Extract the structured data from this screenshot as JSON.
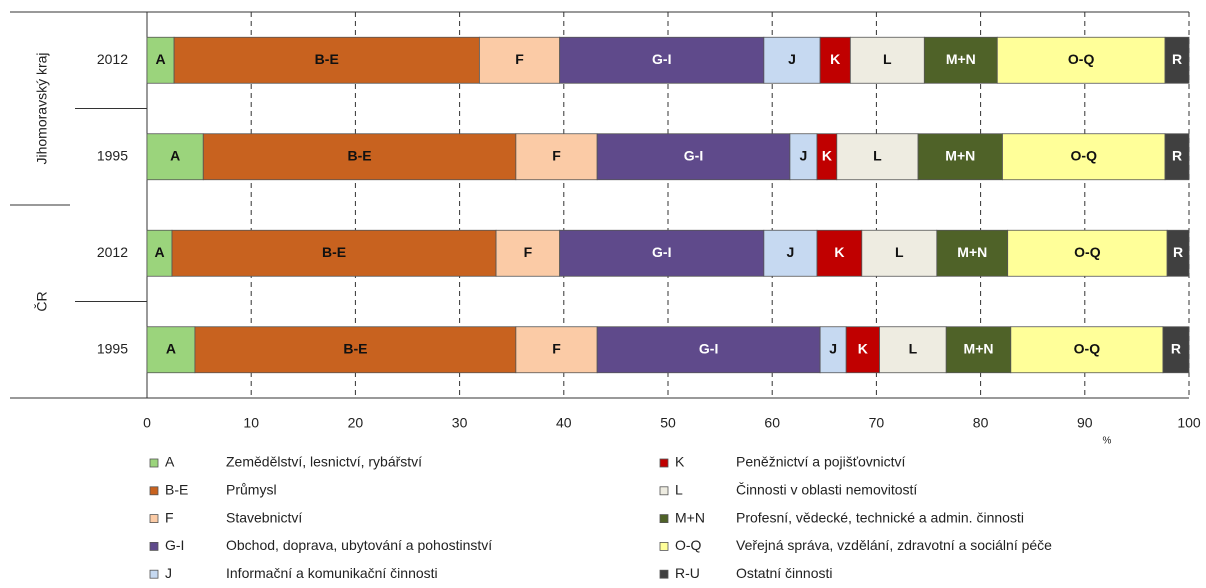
{
  "chart_data": {
    "type": "stacked_bar_horizontal",
    "x_label": "%",
    "xlim": [
      0,
      100
    ],
    "xticks": [
      0,
      10,
      20,
      30,
      40,
      50,
      60,
      70,
      80,
      90,
      100
    ],
    "grid": true,
    "groups": [
      {
        "name": "Jihomoravský kraj"
      },
      {
        "name": "ČR"
      }
    ],
    "categories": [
      "2012",
      "1995",
      "2012",
      "1995"
    ],
    "series": [
      {
        "code": "A",
        "label": "A",
        "name": "Zemědělství, lesnictví, rybářství",
        "color": "#9bd47c",
        "text_color": "#111",
        "values": [
          2.6,
          5.4,
          2.4,
          4.6
        ]
      },
      {
        "code": "B-E",
        "label": "B-E",
        "name": "Průmysl",
        "color": "#c8621f",
        "text_color": "#111",
        "values": [
          29.3,
          30.0,
          31.1,
          30.8
        ]
      },
      {
        "code": "F",
        "label": "F",
        "name": "Stavebnictví",
        "color": "#fbcba6",
        "text_color": "#111",
        "values": [
          7.7,
          7.8,
          6.1,
          7.8
        ]
      },
      {
        "code": "G-I",
        "label": "G-I",
        "name": "Obchod, doprava, ubytování a pohostinství",
        "color": "#5f4a8b",
        "text_color": "#fff",
        "values": [
          19.6,
          18.5,
          19.6,
          21.4
        ]
      },
      {
        "code": "J",
        "label": "J",
        "name": "Informační a komunikační činnosti",
        "color": "#c6d9f1",
        "text_color": "#111",
        "values": [
          5.4,
          2.6,
          5.1,
          2.5
        ]
      },
      {
        "code": "K",
        "label": "K",
        "name": "Peněžnictví a pojišťovnictví",
        "color": "#c00000",
        "text_color": "#fff",
        "values": [
          2.9,
          1.9,
          4.3,
          3.2
        ]
      },
      {
        "code": "L",
        "label": "L",
        "name": "Činnosti v oblasti nemovitostí",
        "color": "#eeece1",
        "text_color": "#111",
        "values": [
          7.1,
          7.8,
          7.2,
          6.4
        ]
      },
      {
        "code": "M+N",
        "label": "M+N",
        "name": "Profesní, vědecké, technické a admin. činnosti",
        "color": "#4f6228",
        "text_color": "#fff",
        "values": [
          7.0,
          8.1,
          6.8,
          6.2
        ]
      },
      {
        "code": "O-Q",
        "label": "O-Q",
        "name": "Veřejná správa, vzdělání, zdravotní a sociální péče",
        "color": "#ffff99",
        "text_color": "#111",
        "values": [
          16.1,
          15.6,
          15.3,
          14.6
        ]
      },
      {
        "code": "R-U",
        "label": "R",
        "name": "Ostatní činnosti",
        "color": "#404040",
        "text_color": "#fff",
        "values": [
          2.3,
          2.3,
          2.1,
          2.5
        ]
      }
    ]
  }
}
